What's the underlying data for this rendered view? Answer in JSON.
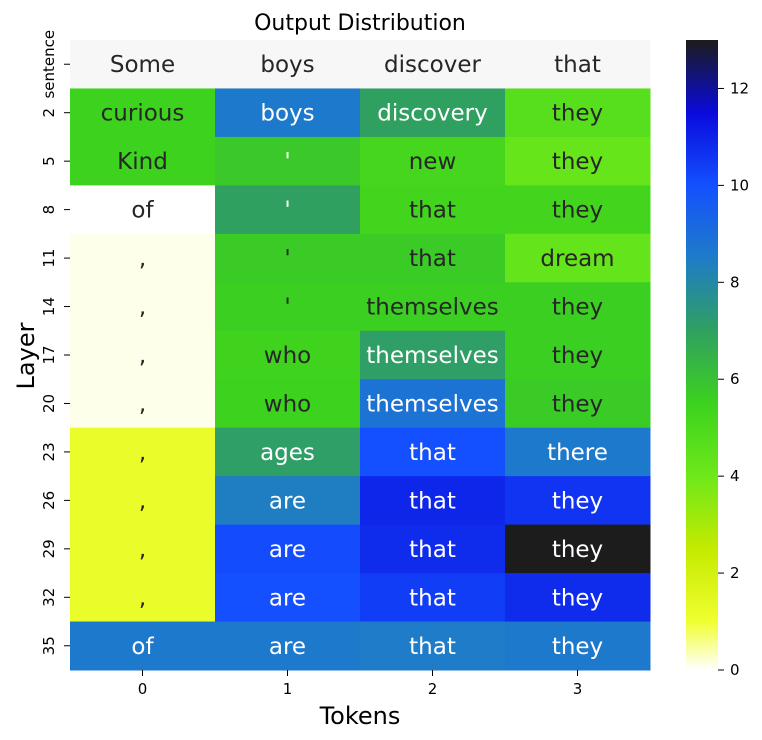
{
  "chart_data": {
    "type": "heatmap",
    "title": "Output Distribution",
    "xlabel": "Tokens",
    "ylabel": "Layer",
    "x_ticks": [
      "0",
      "1",
      "2",
      "3"
    ],
    "y_ticks": [
      "sentence",
      "2",
      "5",
      "8",
      "11",
      "14",
      "17",
      "20",
      "23",
      "26",
      "29",
      "32",
      "35"
    ],
    "cell_text": [
      [
        "Some",
        "boys",
        "discover",
        "that"
      ],
      [
        "curious",
        "boys",
        "discovery",
        "they"
      ],
      [
        "Kind",
        "'",
        "new",
        "they"
      ],
      [
        "of",
        "'",
        "that",
        "they"
      ],
      [
        ",",
        "'",
        "that",
        "dream"
      ],
      [
        ",",
        "'",
        "themselves",
        "they"
      ],
      [
        ",",
        "who",
        "themselves",
        "they"
      ],
      [
        ",",
        "who",
        "themselves",
        "they"
      ],
      [
        ",",
        "ages",
        "that",
        "there"
      ],
      [
        ",",
        "are",
        "that",
        "they"
      ],
      [
        ",",
        "are",
        "that",
        "they"
      ],
      [
        ",",
        "are",
        "that",
        "they"
      ],
      [
        "of",
        "are",
        "that",
        "they"
      ]
    ],
    "values": [
      [
        null,
        null,
        null,
        null
      ],
      [
        5.5,
        8.6,
        7.0,
        4.7
      ],
      [
        5.5,
        5.8,
        5.2,
        4.2
      ],
      [
        0.0,
        7.0,
        5.3,
        5.3
      ],
      [
        0.1,
        5.7,
        5.7,
        4.3
      ],
      [
        0.1,
        5.6,
        5.6,
        5.6
      ],
      [
        0.1,
        5.4,
        7.1,
        5.6
      ],
      [
        0.1,
        5.5,
        8.8,
        5.7
      ],
      [
        1.2,
        7.1,
        10.0,
        8.6
      ],
      [
        1.2,
        8.4,
        10.9,
        10.6
      ],
      [
        1.2,
        10.1,
        10.8,
        13.0
      ],
      [
        1.2,
        10.0,
        10.4,
        10.8
      ],
      [
        8.6,
        8.6,
        8.5,
        8.6
      ]
    ],
    "colorbar": {
      "ticks": [
        "0",
        "2",
        "4",
        "6",
        "8",
        "10",
        "12"
      ],
      "range": [
        0,
        13
      ],
      "colormap_stops": [
        [
          0,
          "#ffffff"
        ],
        [
          1,
          "#f0ff30"
        ],
        [
          2.5,
          "#c4ea00"
        ],
        [
          4,
          "#6ee81a"
        ],
        [
          5.5,
          "#3cd21e"
        ],
        [
          7,
          "#30a060"
        ],
        [
          8.5,
          "#1e7cc8"
        ],
        [
          10,
          "#1450ff"
        ],
        [
          11.5,
          "#0a0adc"
        ],
        [
          13,
          "#1c1c1c"
        ]
      ]
    },
    "top_row_color": "#f7f7f7"
  }
}
